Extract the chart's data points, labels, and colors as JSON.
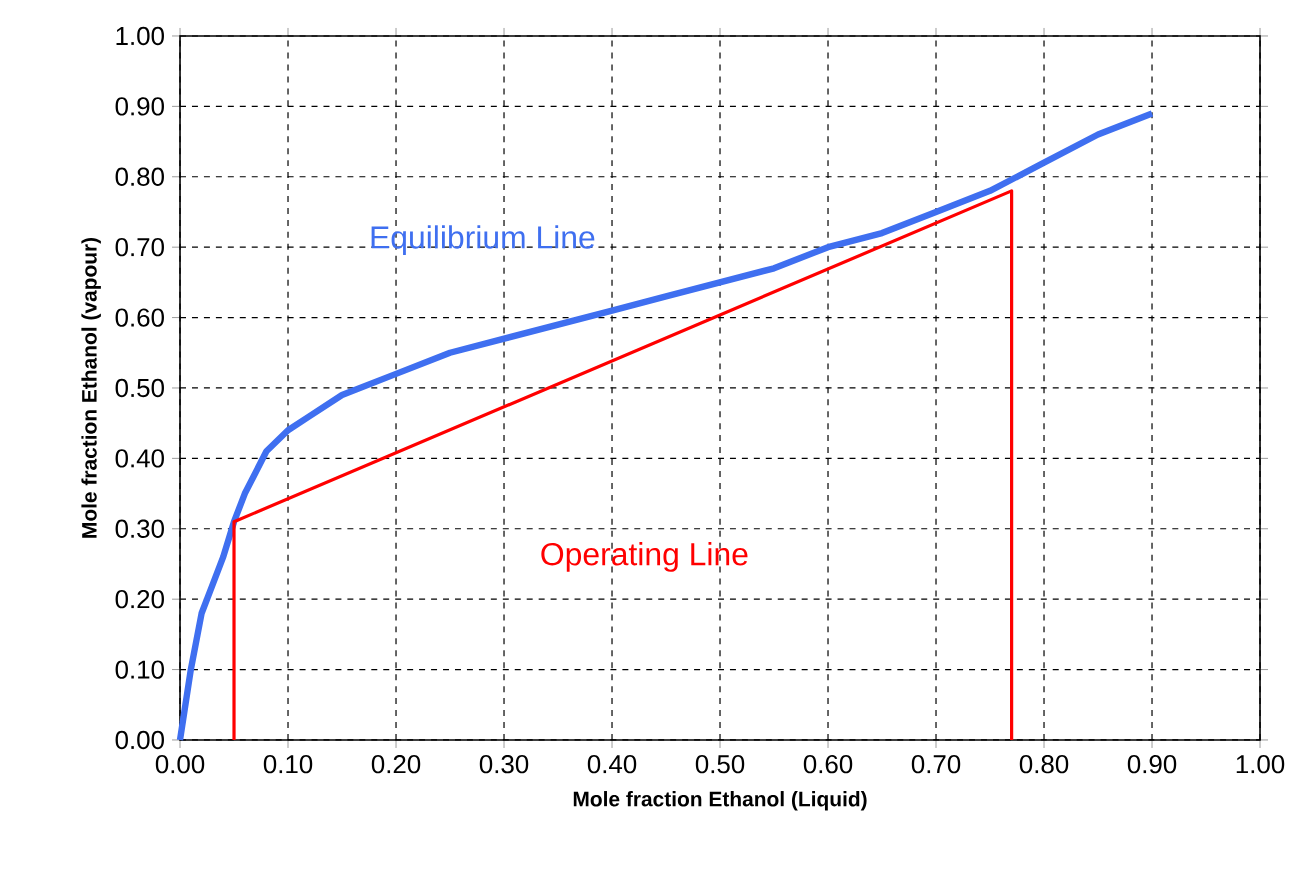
{
  "chart_data": {
    "type": "line",
    "xlabel": "Mole fraction Ethanol (Liquid)",
    "ylabel": "Mole fraction Ethanol (vapour)",
    "xlim": [
      0,
      1
    ],
    "ylim": [
      0,
      1
    ],
    "xticks": [
      {
        "value": 0,
        "label": "0.00"
      },
      {
        "value": 0.1,
        "label": "0.10"
      },
      {
        "value": 0.2,
        "label": "0.20"
      },
      {
        "value": 0.3,
        "label": "0.30"
      },
      {
        "value": 0.4,
        "label": "0.40"
      },
      {
        "value": 0.5,
        "label": "0.50"
      },
      {
        "value": 0.6,
        "label": "0.60"
      },
      {
        "value": 0.7,
        "label": "0.70"
      },
      {
        "value": 0.8,
        "label": "0.80"
      },
      {
        "value": 0.9,
        "label": "0.90"
      },
      {
        "value": 1,
        "label": "1.00"
      }
    ],
    "yticks": [
      {
        "value": 0,
        "label": "0.00"
      },
      {
        "value": 0.1,
        "label": "0.10"
      },
      {
        "value": 0.2,
        "label": "0.20"
      },
      {
        "value": 0.3,
        "label": "0.30"
      },
      {
        "value": 0.4,
        "label": "0.40"
      },
      {
        "value": 0.5,
        "label": "0.50"
      },
      {
        "value": 0.6,
        "label": "0.60"
      },
      {
        "value": 0.7,
        "label": "0.70"
      },
      {
        "value": 0.8,
        "label": "0.80"
      },
      {
        "value": 0.9,
        "label": "0.90"
      },
      {
        "value": 1,
        "label": "1.00"
      }
    ],
    "grid": true,
    "line_style": "solid",
    "marker": "none",
    "series": [
      {
        "name": "Equilibrium Line",
        "color": "#3f6ff0",
        "x": [
          0,
          0.01,
          0.02,
          0.03,
          0.04,
          0.05,
          0.06,
          0.08,
          0.1,
          0.12,
          0.15,
          0.2,
          0.25,
          0.3,
          0.35,
          0.4,
          0.45,
          0.5,
          0.55,
          0.6,
          0.65,
          0.7,
          0.75,
          0.8,
          0.85,
          0.9
        ],
        "values": [
          0,
          0.1,
          0.18,
          0.22,
          0.26,
          0.31,
          0.35,
          0.41,
          0.44,
          0.46,
          0.49,
          0.52,
          0.55,
          0.57,
          0.59,
          0.61,
          0.63,
          0.65,
          0.67,
          0.7,
          0.72,
          0.75,
          0.78,
          0.82,
          0.86,
          0.89
        ]
      },
      {
        "name": "Operating Line",
        "color": "#ff0000",
        "x": [
          0.05,
          0.05,
          0.77,
          0.77
        ],
        "values": [
          0,
          0.31,
          0.78,
          0
        ]
      }
    ]
  }
}
